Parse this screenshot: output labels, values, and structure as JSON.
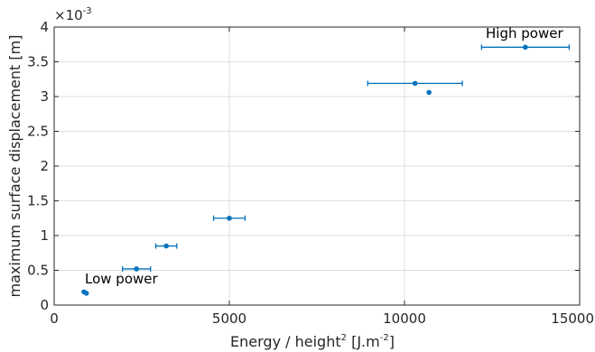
{
  "chart_data": {
    "type": "scatter",
    "xlabel": "Energy / height",
    "xlabel_sup": "2",
    "xlabel_units": "[J.m",
    "xlabel_units_sup": "-2",
    "xlabel_units_end": "]",
    "ylabel": "maximum surface displacement [m]",
    "y_multiplier": "×10",
    "y_multiplier_exp": "-3",
    "xlim": [
      0,
      15000
    ],
    "ylim": [
      0,
      4
    ],
    "x_ticks": [
      "0",
      "5000",
      "10000",
      "15000"
    ],
    "y_ticks": [
      "0",
      "0.5",
      "1",
      "1.5",
      "2",
      "2.5",
      "3",
      "3.5",
      "4"
    ],
    "grid": true,
    "annotations": [
      "Low power",
      "High power"
    ],
    "points": [
      {
        "x": 850,
        "y": 0.19,
        "xerr": 0
      },
      {
        "x": 920,
        "y": 0.17,
        "xerr": 0
      },
      {
        "x": 2350,
        "y": 0.52,
        "xerr": 400
      },
      {
        "x": 3200,
        "y": 0.85,
        "xerr": 300
      },
      {
        "x": 5000,
        "y": 1.25,
        "xerr": 450
      },
      {
        "x": 10300,
        "y": 3.19,
        "xerr": 1350
      },
      {
        "x": 10700,
        "y": 3.06,
        "xerr": 0
      },
      {
        "x": 13450,
        "y": 3.71,
        "xerr": 1250
      }
    ],
    "marker_color": "#0072BD"
  }
}
